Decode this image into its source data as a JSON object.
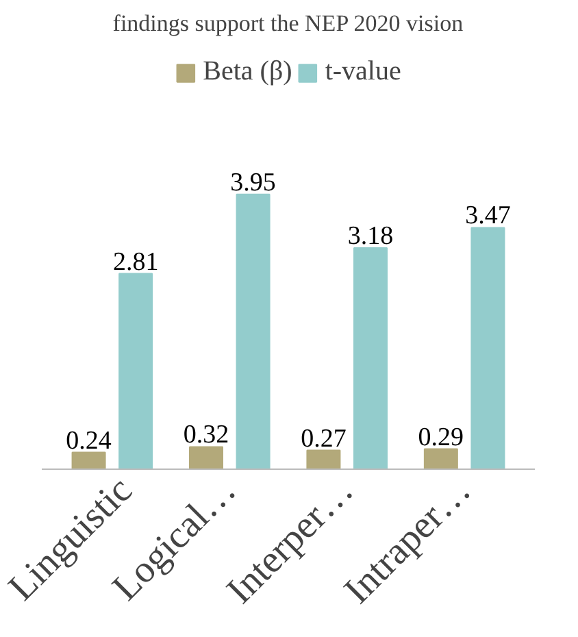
{
  "chart_data": {
    "type": "bar",
    "categories": [
      "Linguistic",
      "Logical…",
      "Interper…",
      "Intraper…"
    ],
    "series": [
      {
        "name": "Beta (β)",
        "color": "#b3a97a",
        "values": [
          0.24,
          0.32,
          0.27,
          0.29
        ]
      },
      {
        "name": "t-value",
        "color": "#93cccc",
        "values": [
          2.81,
          3.95,
          3.18,
          3.47
        ]
      }
    ],
    "data_labels": true,
    "legend": "top",
    "grid": false,
    "annotations": [
      "findings support the NEP 2020 vision"
    ]
  }
}
